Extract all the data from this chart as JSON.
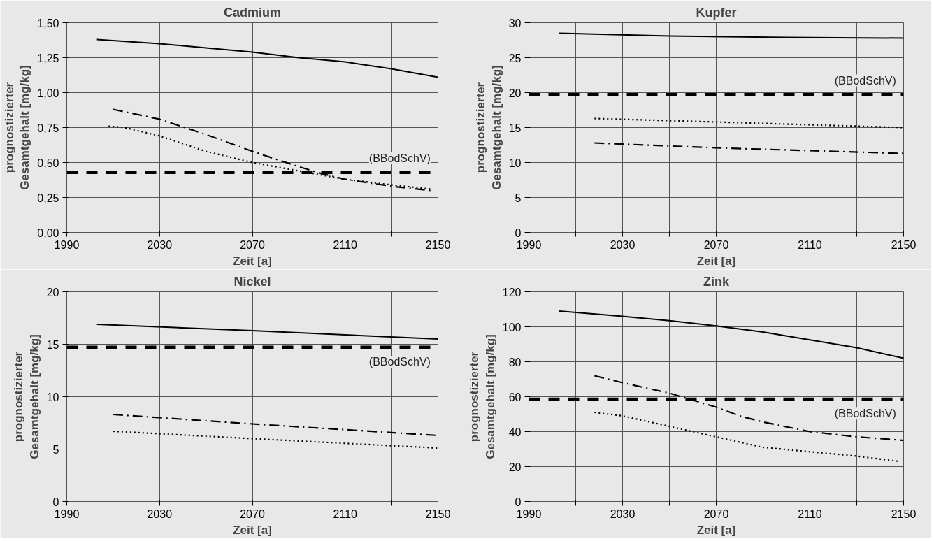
{
  "chart_data": [
    {
      "type": "line",
      "title": "Cadmium",
      "xlabel": "Zeit [a]",
      "ylabel": "prognostizierter\nGesamtgehalt [mg/kg]",
      "xlim": [
        1990,
        2150
      ],
      "xticks": [
        1990,
        {
          "value": 2010,
          "label": null
        },
        2030,
        {
          "value": 2050,
          "label": null
        },
        2070,
        {
          "value": 2090,
          "label": null
        },
        2110,
        {
          "value": 2130,
          "label": null
        },
        2150
      ],
      "ylim": [
        0,
        1.5
      ],
      "yticks": [
        {
          "value": 0,
          "label": "0,00"
        },
        {
          "value": 0.25,
          "label": "0,25"
        },
        {
          "value": 0.5,
          "label": "0,50"
        },
        {
          "value": 0.75,
          "label": "0,75"
        },
        {
          "value": 1,
          "label": "1,00"
        },
        {
          "value": 1.25,
          "label": "1,25"
        },
        {
          "value": 1.5,
          "label": "1,50"
        }
      ],
      "grid": true,
      "series": [
        {
          "color": "#000000",
          "line_style": "solid",
          "x": [
            2003,
            2030,
            2050,
            2070,
            2090,
            2110,
            2130,
            2150
          ],
          "values": [
            1.38,
            1.35,
            1.32,
            1.29,
            1.25,
            1.22,
            1.17,
            1.11
          ]
        },
        {
          "color": "#000000",
          "line_style": "dashdot",
          "x": [
            2010,
            2030,
            2050,
            2070,
            2090,
            2100,
            2110,
            2130,
            2147
          ],
          "values": [
            0.88,
            0.81,
            0.7,
            0.58,
            0.47,
            0.42,
            0.38,
            0.33,
            0.3
          ]
        },
        {
          "color": "#000000",
          "line_style": "dotted",
          "x": [
            2008,
            2015,
            2030,
            2050,
            2070,
            2090,
            2110,
            2130,
            2147
          ],
          "values": [
            0.76,
            0.75,
            0.69,
            0.58,
            0.5,
            0.44,
            0.38,
            0.34,
            0.31
          ]
        }
      ],
      "ref_lines": [
        {
          "axis": "y",
          "value": 0.43,
          "label": "(BBodSchV)",
          "color": "#000000",
          "line_style": "dashed"
        }
      ]
    },
    {
      "type": "line",
      "title": "Kupfer",
      "xlabel": "Zeit [a]",
      "ylabel": "prognostizierter\nGesamtgehalt [mg/kg]",
      "xlim": [
        1990,
        2150
      ],
      "xticks": [
        1990,
        {
          "value": 2010,
          "label": null
        },
        2030,
        {
          "value": 2050,
          "label": null
        },
        2070,
        {
          "value": 2090,
          "label": null
        },
        2110,
        {
          "value": 2130,
          "label": null
        },
        2150
      ],
      "ylim": [
        0,
        30
      ],
      "yticks": [
        0,
        5,
        10,
        15,
        20,
        25,
        30
      ],
      "grid": true,
      "series": [
        {
          "color": "#000000",
          "line_style": "solid",
          "x": [
            2003,
            2050,
            2100,
            2150
          ],
          "values": [
            28.5,
            28.1,
            27.9,
            27.8
          ]
        },
        {
          "color": "#000000",
          "line_style": "dashdot",
          "x": [
            2018,
            2070,
            2150
          ],
          "values": [
            12.8,
            12.1,
            11.3
          ]
        },
        {
          "color": "#000000",
          "line_style": "dotted",
          "x": [
            2018,
            2070,
            2150
          ],
          "values": [
            16.3,
            15.8,
            15.0
          ]
        }
      ],
      "ref_lines": [
        {
          "axis": "y",
          "value": 19.7,
          "label": "(BBodSchV)",
          "color": "#000000",
          "line_style": "dashed"
        }
      ]
    },
    {
      "type": "line",
      "title": "Nickel",
      "xlabel": "Zeit [a]",
      "ylabel": "prognostizierter\nGesamtgehalt [mg/kg]",
      "xlim": [
        1990,
        2150
      ],
      "xticks": [
        1990,
        {
          "value": 2010,
          "label": null
        },
        2030,
        {
          "value": 2050,
          "label": null
        },
        2070,
        {
          "value": 2090,
          "label": null
        },
        2110,
        {
          "value": 2130,
          "label": null
        },
        2150
      ],
      "ylim": [
        0,
        20
      ],
      "yticks": [
        0,
        5,
        10,
        15,
        20
      ],
      "grid": true,
      "series": [
        {
          "color": "#000000",
          "line_style": "solid",
          "x": [
            2003,
            2070,
            2150
          ],
          "values": [
            16.9,
            16.3,
            15.5
          ]
        },
        {
          "color": "#000000",
          "line_style": "dashdot",
          "x": [
            2010,
            2070,
            2150
          ],
          "values": [
            8.3,
            7.4,
            6.3
          ]
        },
        {
          "color": "#000000",
          "line_style": "dotted",
          "x": [
            2010,
            2070,
            2150
          ],
          "values": [
            6.7,
            6.0,
            5.1
          ]
        }
      ],
      "ref_lines": [
        {
          "axis": "y",
          "value": 14.7,
          "label": "(BBodSchV)",
          "color": "#000000",
          "line_style": "dashed"
        }
      ]
    },
    {
      "type": "line",
      "title": "Zink",
      "xlabel": "Zeit [a]",
      "ylabel": "prognostizierter\nGesamtgehalt [mg/kg]",
      "xlim": [
        1990,
        2150
      ],
      "xticks": [
        1990,
        {
          "value": 2010,
          "label": null
        },
        2030,
        {
          "value": 2050,
          "label": null
        },
        2070,
        {
          "value": 2090,
          "label": null
        },
        2110,
        {
          "value": 2130,
          "label": null
        },
        2150
      ],
      "ylim": [
        0,
        120
      ],
      "yticks": [
        0,
        20,
        40,
        60,
        80,
        100,
        120
      ],
      "grid": true,
      "series": [
        {
          "color": "#000000",
          "line_style": "solid",
          "x": [
            2003,
            2030,
            2050,
            2070,
            2090,
            2110,
            2130,
            2150
          ],
          "values": [
            109,
            106,
            103.5,
            100.5,
            97,
            92.5,
            88,
            82
          ]
        },
        {
          "color": "#000000",
          "line_style": "dashdot",
          "x": [
            2018,
            2030,
            2050,
            2060,
            2070,
            2080,
            2090,
            2110,
            2130,
            2150
          ],
          "values": [
            72,
            68,
            62,
            58,
            54,
            49,
            45.5,
            40,
            37,
            35
          ]
        },
        {
          "color": "#000000",
          "line_style": "dotted",
          "x": [
            2018,
            2030,
            2050,
            2060,
            2070,
            2090,
            2110,
            2130,
            2148
          ],
          "values": [
            51,
            49,
            43,
            40,
            37,
            31,
            28.5,
            26,
            23
          ]
        }
      ],
      "ref_lines": [
        {
          "axis": "y",
          "value": 58.5,
          "label": "(BBodSchV)",
          "color": "#000000",
          "line_style": "dashed"
        }
      ]
    }
  ]
}
